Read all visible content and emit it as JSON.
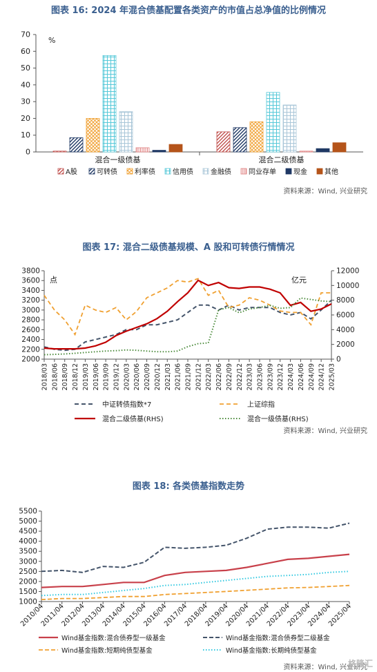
{
  "figure16": {
    "title": "图表 16: 2024 年混合债基配置各类资产的市值占总净值的比例情况",
    "source": "资料来源：Wind, 兴业研究",
    "unit": "%",
    "chart_data": {
      "type": "bar",
      "categories": [
        "混合一级债基",
        "混合二级债基"
      ],
      "series": [
        {
          "name": "A股",
          "values": [
            0.5,
            12
          ],
          "color": "#c0504d",
          "pattern": "diag-r"
        },
        {
          "name": "可转债",
          "values": [
            8.5,
            14.5
          ],
          "color": "#1f3864",
          "pattern": "diag-r"
        },
        {
          "name": "利率债",
          "values": [
            20,
            18
          ],
          "color": "#f0a030",
          "pattern": "cross"
        },
        {
          "name": "信用债",
          "values": [
            57.5,
            35.5
          ],
          "color": "#55c8d8",
          "pattern": "grid"
        },
        {
          "name": "金融债",
          "values": [
            24,
            28
          ],
          "color": "#a9c6d8",
          "pattern": "grid"
        },
        {
          "name": "同业存单",
          "values": [
            2.5,
            0.5
          ],
          "color": "#e08080",
          "pattern": "vert"
        },
        {
          "name": "现金",
          "values": [
            1,
            2
          ],
          "color": "#1f3864",
          "pattern": "solid"
        },
        {
          "name": "其他",
          "values": [
            4.5,
            5.5
          ],
          "color": "#b5541a",
          "pattern": "solid"
        }
      ],
      "ylim": [
        0,
        70
      ],
      "yticks": [
        "0",
        "10",
        "20",
        "30",
        "40",
        "50",
        "60",
        "70"
      ],
      "legend_position": "bottom",
      "grid": false
    }
  },
  "figure17": {
    "title": "图表 17: 混合二级债基规模、A 股和可转债行情情况",
    "source": "资料来源：Wind, 兴业研究",
    "left_unit": "点",
    "right_unit": "亿元",
    "chart_data": {
      "type": "line",
      "x": [
        "2018/03",
        "2018/06",
        "2018/09",
        "2018/12",
        "2019/03",
        "2019/06",
        "2019/09",
        "2019/12",
        "2020/03",
        "2020/06",
        "2020/09",
        "2020/12",
        "2021/03",
        "2021/06",
        "2021/09",
        "2021/12",
        "2022/03",
        "2022/06",
        "2022/09",
        "2022/12",
        "2023/03",
        "2023/06",
        "2023/09",
        "2023/12",
        "2024/03",
        "2024/06",
        "2024/09",
        "2024/12",
        "2025/03"
      ],
      "yticks_left": [
        "2000",
        "2200",
        "2400",
        "2600",
        "2800",
        "3000",
        "3200",
        "3400",
        "3600",
        "3800"
      ],
      "yticks_right": [
        "0",
        "2000",
        "4000",
        "6000",
        "8000",
        "10000",
        "12000"
      ],
      "ylim_left": [
        2000,
        3800
      ],
      "ylim_right": [
        0,
        12000
      ],
      "series": [
        {
          "name": "中证转债指数*7",
          "axis": "left",
          "color": "#44546a",
          "dash": "6,4",
          "width": 2,
          "values": [
            2250,
            2200,
            2180,
            2200,
            2350,
            2400,
            2450,
            2500,
            2600,
            2600,
            2700,
            2700,
            2750,
            2800,
            2950,
            3100,
            3100,
            3000,
            3100,
            3000,
            3050,
            3050,
            3050,
            2950,
            2900,
            2950,
            2820,
            3000,
            3200
          ]
        },
        {
          "name": "上证综指",
          "axis": "left",
          "color": "#f0a030",
          "dash": "6,4",
          "width": 1.8,
          "values": [
            3300,
            3000,
            2800,
            2500,
            3100,
            3000,
            2950,
            3050,
            2800,
            2970,
            3250,
            3350,
            3450,
            3600,
            3570,
            3640,
            3300,
            3400,
            3050,
            3100,
            3250,
            3200,
            3100,
            2980,
            2950,
            2950,
            2700,
            3350,
            3350
          ]
        },
        {
          "name": "混合二级债基(RHS)",
          "axis": "right",
          "color": "#c00000",
          "dash": "",
          "width": 2.2,
          "values": [
            1500,
            1400,
            1400,
            1400,
            1500,
            1800,
            2300,
            3200,
            3800,
            4300,
            4800,
            5500,
            6500,
            7800,
            9000,
            10700,
            10000,
            10400,
            9700,
            9600,
            9800,
            9800,
            9500,
            9000,
            7300,
            7700,
            6500,
            6800,
            7500
          ]
        },
        {
          "name": "混合一级债基(RHS)",
          "axis": "right",
          "color": "#4a8a3a",
          "dash": "1.5,2.5",
          "width": 2,
          "values": [
            600,
            650,
            700,
            800,
            900,
            1000,
            1100,
            1150,
            1250,
            1200,
            1100,
            1000,
            1000,
            1100,
            1700,
            2100,
            2200,
            6700,
            7000,
            6300,
            6800,
            7000,
            7300,
            6900,
            7000,
            8300,
            8100,
            7900,
            7800
          ]
        }
      ],
      "legend_position": "bottom"
    }
  },
  "figure18": {
    "title": "图表 18: 各类债基指数走势",
    "source": "资料来源：Wind, 兴业研究",
    "watermark": "格隆汇",
    "chart_data": {
      "type": "line",
      "x": [
        "2010/04",
        "2011/04",
        "2012/04",
        "2013/04",
        "2014/04",
        "2015/04",
        "2016/04",
        "2017/04",
        "2018/04",
        "2019/04",
        "2020/04",
        "2021/04",
        "2022/04",
        "2023/04",
        "2024/04",
        "2025/04"
      ],
      "yticks": [
        "1000",
        "1500",
        "2000",
        "2500",
        "3000",
        "3500",
        "4000",
        "4500",
        "5000",
        "5500"
      ],
      "ylim": [
        1000,
        5500
      ],
      "series": [
        {
          "name": "Wind基金指数:混合债券型一级基金",
          "color": "#c8404a",
          "dash": "",
          "width": 2.2,
          "values": [
            1700,
            1750,
            1750,
            1850,
            1950,
            1950,
            2300,
            2450,
            2500,
            2550,
            2700,
            2900,
            3100,
            3150,
            3250,
            3350
          ]
        },
        {
          "name": "Wind基金指数:混合债券型二级基金",
          "color": "#44546a",
          "dash": "6,3",
          "width": 2,
          "values": [
            2500,
            2550,
            2450,
            2750,
            2700,
            2950,
            3700,
            3650,
            3700,
            3800,
            4150,
            4600,
            4700,
            4700,
            4650,
            4900
          ]
        },
        {
          "name": "Wind基金指数:短期纯债型基金",
          "color": "#f0a030",
          "dash": "6,3",
          "width": 1.8,
          "values": [
            1100,
            1150,
            1150,
            1200,
            1250,
            1250,
            1350,
            1400,
            1450,
            1500,
            1560,
            1620,
            1680,
            1700,
            1750,
            1800
          ]
        },
        {
          "name": "Wind基金指数:长期纯债型基金",
          "color": "#30c8e0",
          "dash": "1.5,2.5",
          "width": 2,
          "values": [
            1300,
            1350,
            1350,
            1450,
            1550,
            1650,
            1800,
            1850,
            1950,
            2050,
            2150,
            2250,
            2300,
            2350,
            2450,
            2500
          ]
        }
      ],
      "legend_position": "bottom"
    }
  }
}
